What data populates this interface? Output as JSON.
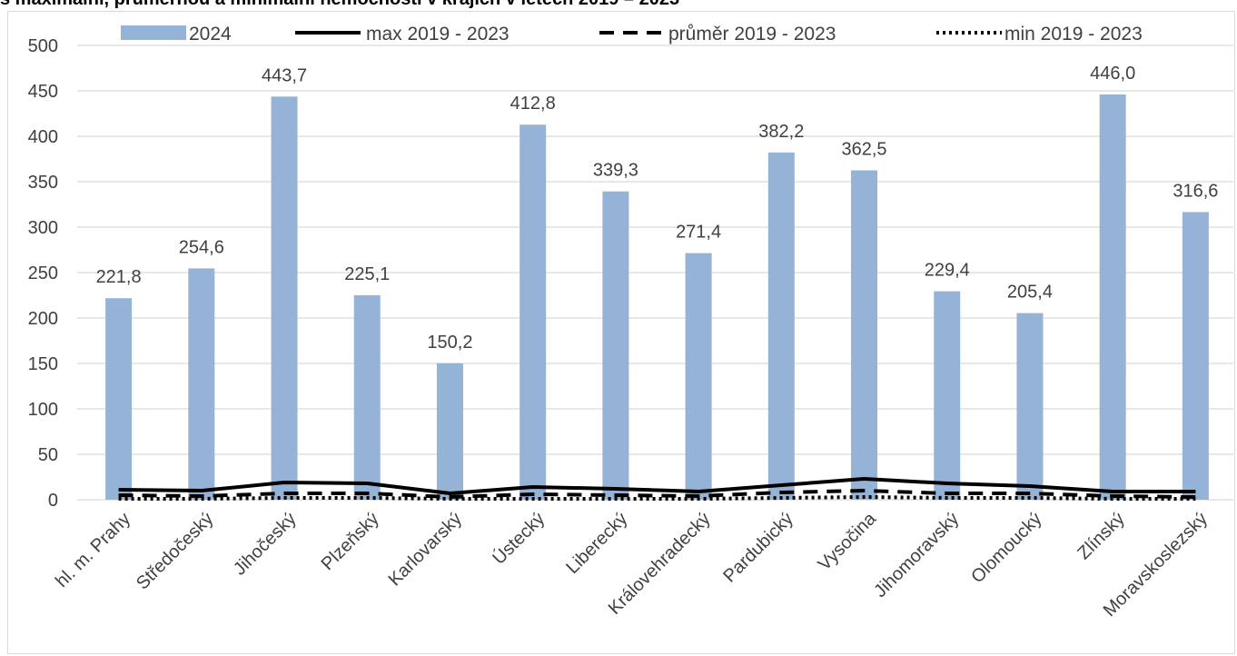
{
  "title": "s maximální, průměrnou a minimální nemocností v krajích v letech 2019 – 2023",
  "colors": {
    "bar": "#95B3D7",
    "line": "#000000",
    "grid": "#d9d9d9",
    "text": "#404040"
  },
  "chart_data": {
    "type": "bar",
    "categories": [
      "hl. m. Prahy",
      "Středočeský",
      "Jihočeský",
      "Plzeňský",
      "Karlovarský",
      "Ústecký",
      "Liberecký",
      "Královehradecký",
      "Pardubický",
      "Vysočina",
      "Jihomoravský",
      "Olomoucký",
      "Zlínský",
      "Moravskoslezský"
    ],
    "series": [
      {
        "name": "2024",
        "type": "bar",
        "values": [
          221.8,
          254.6,
          443.7,
          225.1,
          150.2,
          412.8,
          339.3,
          271.4,
          382.2,
          362.5,
          229.4,
          205.4,
          446.0,
          316.6
        ],
        "labels": [
          "221,8",
          "254,6",
          "443,7",
          "225,1",
          "150,2",
          "412,8",
          "339,3",
          "271,4",
          "382,2",
          "362,5",
          "229,4",
          "205,4",
          "446,0",
          "316,6"
        ]
      },
      {
        "name": "max 2019 - 2023",
        "type": "line",
        "style": "solid",
        "values": [
          11,
          10,
          19,
          18,
          7,
          14,
          12,
          9,
          16,
          23,
          18,
          15,
          9,
          9
        ]
      },
      {
        "name": "průměr 2019 - 2023",
        "type": "line",
        "style": "dashed",
        "values": [
          5,
          4,
          7,
          7,
          3,
          6,
          5,
          4,
          8,
          10,
          7,
          7,
          4,
          3
        ]
      },
      {
        "name": "min 2019 - 2023",
        "type": "line",
        "style": "dotted",
        "values": [
          1,
          1,
          2,
          2,
          1,
          1,
          1,
          1,
          2,
          3,
          2,
          2,
          1,
          1
        ]
      }
    ],
    "ylim": [
      0,
      500
    ],
    "yticks": [
      0,
      50,
      100,
      150,
      200,
      250,
      300,
      350,
      400,
      450,
      500
    ],
    "grid": true,
    "legend": "top"
  }
}
